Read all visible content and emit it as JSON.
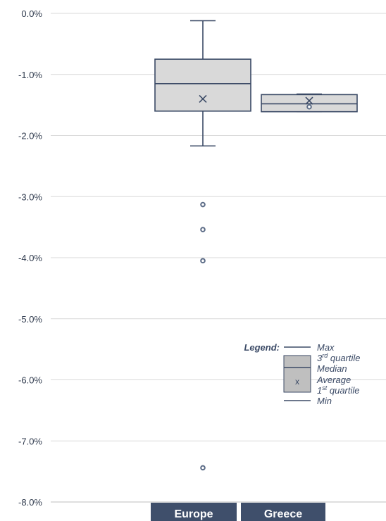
{
  "chart_data": {
    "type": "box",
    "title": "",
    "xlabel": "",
    "ylabel": "",
    "ylim": [
      -8.0,
      0.0
    ],
    "y_ticks": [
      0.0,
      -1.0,
      -2.0,
      -3.0,
      -4.0,
      -5.0,
      -6.0,
      -7.0,
      -8.0
    ],
    "y_tick_labels": [
      "0.0%",
      "-1.0%",
      "-2.0%",
      "-3.0%",
      "-4.0%",
      "-5.0%",
      "-6.0%",
      "-7.0%",
      "-8.0%"
    ],
    "grid": true,
    "categories": [
      "Europe",
      "Greece"
    ],
    "boxes": [
      {
        "name": "Europe",
        "max": -0.12,
        "q3": -0.75,
        "median": -1.15,
        "mean": -1.4,
        "q1": -1.6,
        "min": -2.17,
        "outliers": [
          -3.13,
          -3.54,
          -4.05,
          -7.44
        ]
      },
      {
        "name": "Greece",
        "max": -1.32,
        "q3": -1.33,
        "median": -1.48,
        "mean": -1.43,
        "q1": -1.61,
        "min": -1.61,
        "outliers": [
          -1.53
        ]
      }
    ],
    "legend": {
      "title": "Legend:",
      "placement": "bottom-right",
      "max_label": "Max",
      "q3_label_main": "3",
      "q3_label_sup": "rd",
      "q3_label_rest": " quartile",
      "median_label": "Median",
      "average_label": "Average",
      "q1_label_main": "1",
      "q1_label_sup": "st",
      "q1_label_rest": " quartile",
      "min_label": "Min",
      "mean_marker": "x"
    },
    "colors": {
      "box_fill": "#d9d9d9",
      "box_stroke": "#3b4a66",
      "category_tab": "#3f4f6b",
      "outlier": "#5b6b86"
    }
  }
}
